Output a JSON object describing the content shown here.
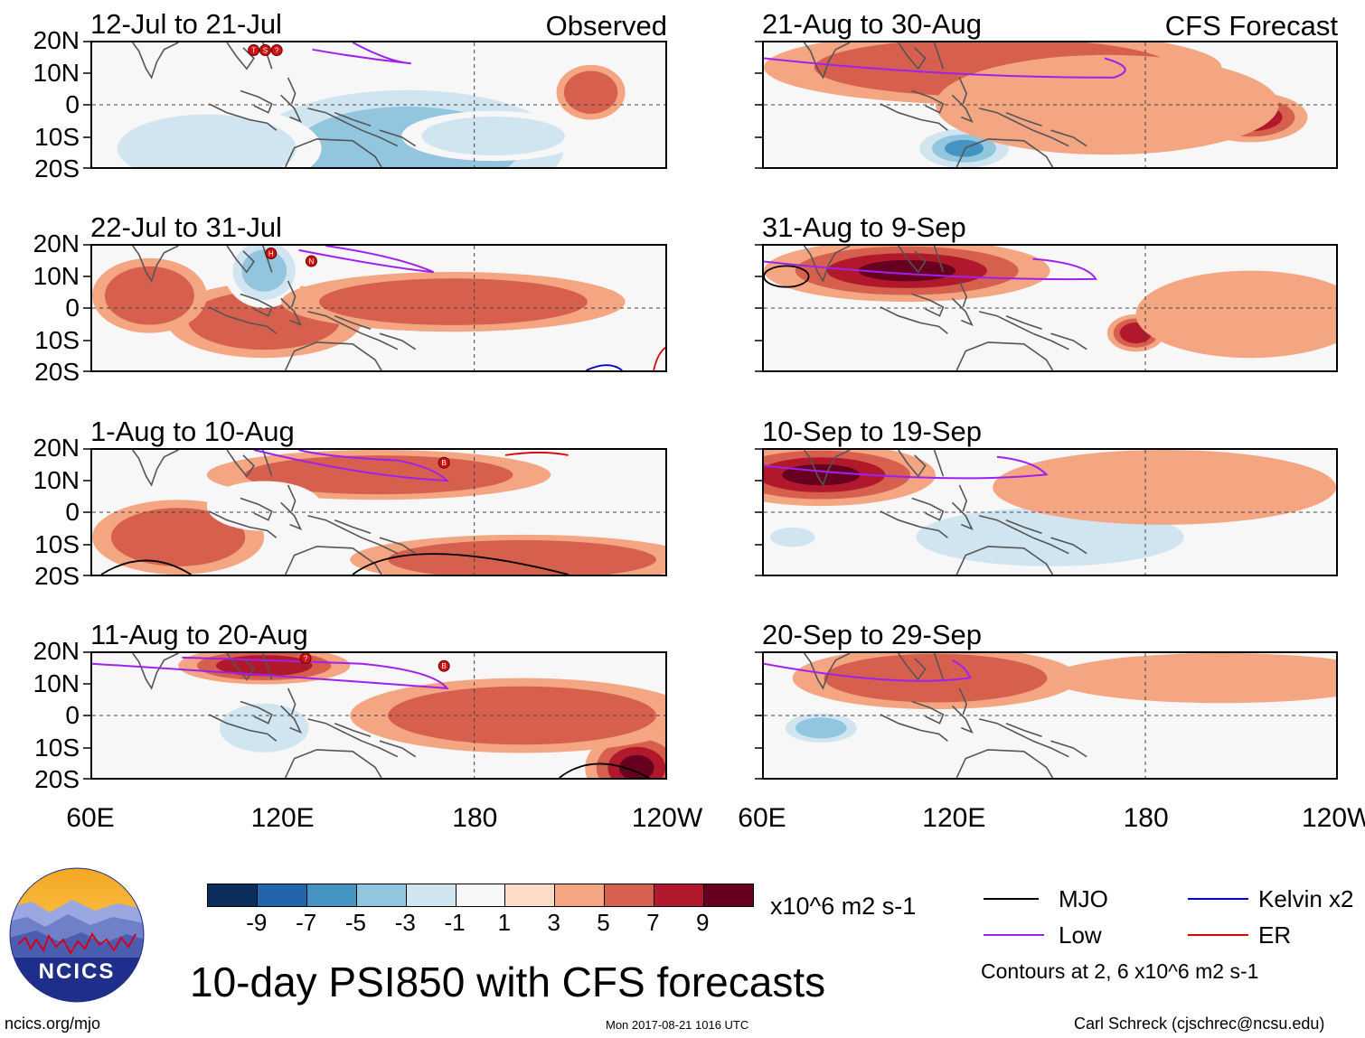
{
  "panels": [
    {
      "title": "12-Jul to 21-Jul",
      "tag": "Observed",
      "storms": [
        "T",
        "S",
        "?"
      ]
    },
    {
      "title": "22-Jul to 31-Jul",
      "tag": "",
      "storms": [
        "H",
        "N"
      ]
    },
    {
      "title": "1-Aug to 10-Aug",
      "tag": "",
      "storms": [
        "B"
      ]
    },
    {
      "title": "11-Aug to 20-Aug",
      "tag": "",
      "storms": [
        "?",
        "B"
      ]
    },
    {
      "title": "21-Aug to 30-Aug",
      "tag": "CFS Forecast",
      "storms": []
    },
    {
      "title": "31-Aug to 9-Sep",
      "tag": "",
      "storms": []
    },
    {
      "title": "10-Sep to 19-Sep",
      "tag": "",
      "storms": []
    },
    {
      "title": "20-Sep to 29-Sep",
      "tag": "",
      "storms": []
    }
  ],
  "lat_labels": [
    "20N",
    "10N",
    "0",
    "10S",
    "20S"
  ],
  "lon_labels": [
    "60E",
    "120E",
    "180",
    "120W"
  ],
  "colorbar": {
    "colors": [
      "#0b2e5c",
      "#2166ac",
      "#4393c3",
      "#92c5de",
      "#d1e5f0",
      "#f7f7f7",
      "#fddbc7",
      "#f4a582",
      "#d6604d",
      "#b2182b",
      "#67001f"
    ],
    "labels": [
      "-9",
      "-7",
      "-5",
      "-3",
      "-1",
      "1",
      "3",
      "5",
      "7",
      "9"
    ],
    "units": "x10^6 m2 s-1"
  },
  "legend": {
    "items": [
      {
        "label": "MJO",
        "color": "#000000"
      },
      {
        "label": "Kelvin x2",
        "color": "#0000cc"
      },
      {
        "label": "Low",
        "color": "#a020f0"
      },
      {
        "label": "ER",
        "color": "#dd0000"
      }
    ],
    "contours_note": "Contours at 2, 6 x10^6 m2 s-1"
  },
  "main_title": "10-day PSI850 with CFS forecasts",
  "logo_text": "NCICS",
  "footer": {
    "url": "ncics.org/mjo",
    "timestamp": "Mon 2017-08-21 1016 UTC",
    "credit": "Carl Schreck (cjschrec@ncsu.edu)"
  },
  "fields": [
    [
      [
        0.55,
        0.85,
        0.35,
        0.6,
        0.25,
        0.35,
        -3
      ],
      [
        0.2,
        0.85,
        0.2,
        0.35,
        0.35,
        0.2,
        -2
      ],
      [
        0.87,
        0.4,
        0.06,
        0.22,
        0.3,
        0.3,
        2
      ],
      [
        0.7,
        0.75,
        0.16,
        0.2,
        0.2,
        0.3,
        -2
      ]
    ],
    [
      [
        0.3,
        0.6,
        0.17,
        0.3,
        0.45,
        0.3,
        2
      ],
      [
        0.3,
        0.2,
        0.07,
        0.3,
        0.25,
        0.4,
        -3
      ],
      [
        0.63,
        0.45,
        0.3,
        0.24,
        0.3,
        0.3,
        2
      ],
      [
        0.1,
        0.4,
        0.1,
        0.3,
        0.3,
        0.25,
        2
      ]
    ],
    [
      [
        0.75,
        0.88,
        0.3,
        0.2,
        0.5,
        0.3,
        2
      ],
      [
        0.15,
        0.7,
        0.15,
        0.3,
        0.3,
        0.4,
        2
      ],
      [
        0.5,
        0.2,
        0.3,
        0.2,
        0.3,
        0.3,
        2
      ],
      [
        0.3,
        0.45,
        0.1,
        0.2,
        0.3,
        0.3,
        -1
      ]
    ],
    [
      [
        0.95,
        0.92,
        0.09,
        0.3,
        0.3,
        0.4,
        4
      ],
      [
        0.3,
        0.1,
        0.15,
        0.15,
        0.35,
        0.3,
        3
      ],
      [
        0.3,
        0.6,
        0.1,
        0.25,
        0.3,
        0.3,
        -2
      ],
      [
        0.75,
        0.5,
        0.3,
        0.3,
        0.3,
        0.3,
        2
      ]
    ],
    [
      [
        0.4,
        0.2,
        0.4,
        0.3,
        0.4,
        0.3,
        2
      ],
      [
        0.35,
        0.85,
        0.1,
        0.2,
        0.3,
        0.3,
        -4
      ],
      [
        0.85,
        0.6,
        0.1,
        0.2,
        0.3,
        0.4,
        3
      ],
      [
        0.6,
        0.5,
        0.3,
        0.4,
        0.3,
        0.3,
        1
      ]
    ],
    [
      [
        0.25,
        0.2,
        0.25,
        0.25,
        0.4,
        0.4,
        4
      ],
      [
        0.5,
        0.7,
        0.2,
        0.2,
        0.3,
        0.3,
        -1
      ],
      [
        0.65,
        0.7,
        0.05,
        0.15,
        0.3,
        0.3,
        3
      ],
      [
        0.85,
        0.55,
        0.2,
        0.35,
        0.3,
        0.3,
        1
      ]
    ],
    [
      [
        0.1,
        0.2,
        0.2,
        0.25,
        0.3,
        0.35,
        5
      ],
      [
        0.5,
        0.7,
        0.3,
        0.3,
        0.3,
        0.3,
        -2
      ],
      [
        0.7,
        0.3,
        0.3,
        0.3,
        0.3,
        0.3,
        1
      ],
      [
        0.05,
        0.7,
        0.05,
        0.1,
        0.25,
        0.3,
        -2
      ]
    ],
    [
      [
        0.3,
        0.2,
        0.25,
        0.25,
        0.35,
        0.3,
        2
      ],
      [
        0.1,
        0.6,
        0.08,
        0.15,
        0.3,
        0.3,
        -3
      ],
      [
        0.5,
        0.7,
        0.2,
        0.3,
        0.3,
        0.3,
        -1
      ],
      [
        0.8,
        0.2,
        0.3,
        0.2,
        0.3,
        0.3,
        1
      ]
    ]
  ]
}
